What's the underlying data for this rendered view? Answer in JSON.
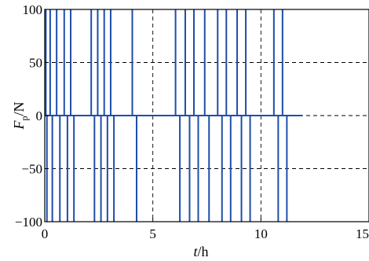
{
  "chart_data": {
    "type": "line",
    "title": "",
    "xlabel": {
      "main": "t",
      "unit": "/h"
    },
    "ylabel": {
      "main": "F",
      "sub": "p",
      "unit": "/N"
    },
    "xlim": [
      0,
      15
    ],
    "ylim": [
      -100,
      100
    ],
    "x_ticks": [
      0,
      5,
      10,
      15
    ],
    "y_ticks": [
      -100,
      -50,
      0,
      50,
      100
    ],
    "x_tick_labels": [
      "0",
      "5",
      "10",
      "15"
    ],
    "y_tick_labels": [
      "−100",
      "−50",
      "0",
      "50",
      "100"
    ],
    "grid": true,
    "series": [
      {
        "color": "#1f4ea8",
        "switch_times": [
          0.05,
          0.1,
          0.25,
          0.35,
          0.55,
          0.7,
          0.9,
          1.05,
          1.2,
          1.35,
          2.15,
          2.3,
          2.45,
          2.6,
          2.75,
          2.9,
          3.05,
          3.2,
          4.05,
          4.25,
          6.05,
          6.25,
          6.5,
          6.7,
          6.9,
          7.1,
          7.4,
          7.6,
          8.0,
          8.2,
          8.4,
          8.6,
          8.9,
          9.1,
          9.3,
          9.5,
          10.6,
          10.8,
          11.0,
          11.2
        ],
        "switch_levels": [
          100,
          -100,
          100,
          -100,
          100,
          -100,
          100,
          -100,
          100,
          -100,
          100,
          -100,
          100,
          -100,
          100,
          -100,
          100,
          -100,
          100,
          -100,
          100,
          -100,
          100,
          -100,
          100,
          -100,
          100,
          -100,
          100,
          -100,
          100,
          -100,
          100,
          -100,
          100,
          -100,
          100,
          -100,
          100,
          -100
        ],
        "baseline": 0,
        "end_time": 11.9
      }
    ]
  }
}
